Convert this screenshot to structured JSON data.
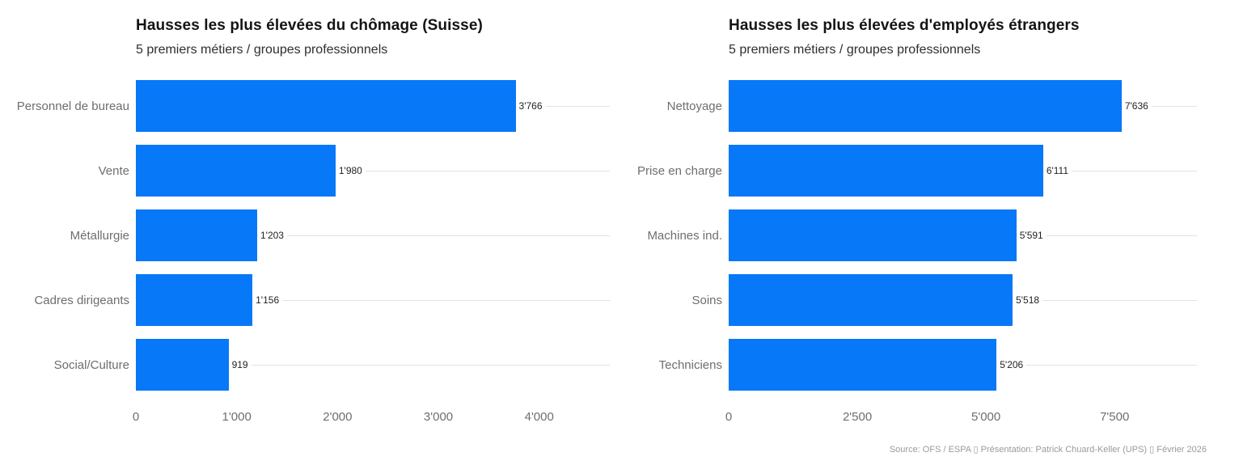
{
  "colors": {
    "bar": "#0778f7",
    "gridline": "#e2e2e2",
    "title": "#141414",
    "subtitle": "#2e2e2e",
    "category_label": "#6e6e6e",
    "tick_label": "#6e6e6e",
    "value_label": "#1f1f1f",
    "footer": "#9a9a9a"
  },
  "footer": {
    "text": "Source: OFS / ESPA ▯ Présentation: Patrick Chuard-Keller (UPS) ▯ Février 2026"
  },
  "chart_data": [
    {
      "type": "bar",
      "orientation": "horizontal",
      "title": "Hausses les plus élevées du chômage (Suisse)",
      "subtitle": "5 premiers métiers / groupes professionnels",
      "categories": [
        "Personnel de bureau",
        "Vente",
        "Métallurgie",
        "Cadres dirigeants",
        "Social/Culture"
      ],
      "values": [
        3766,
        1980,
        1203,
        1156,
        919
      ],
      "value_labels": [
        "3'766",
        "1'980",
        "1'203",
        "1'156",
        "919"
      ],
      "xticks": [
        0,
        1000,
        2000,
        3000,
        4000
      ],
      "xtick_labels": [
        "0",
        "1'000",
        "2'000",
        "3'000",
        "4'000"
      ],
      "xlim": [
        0,
        4700
      ],
      "grid": "horizontal-row-lines",
      "legend": "none"
    },
    {
      "type": "bar",
      "orientation": "horizontal",
      "title": "Hausses les plus élevées d'employés étrangers",
      "subtitle": "5 premiers métiers / groupes professionnels",
      "categories": [
        "Nettoyage",
        "Prise en charge",
        "Machines ind.",
        "Soins",
        "Techniciens"
      ],
      "values": [
        7636,
        6111,
        5591,
        5518,
        5206
      ],
      "value_labels": [
        "7'636",
        "6'111",
        "5'591",
        "5'518",
        "5'206"
      ],
      "xticks": [
        0,
        2500,
        5000,
        7500
      ],
      "xtick_labels": [
        "0",
        "2'500",
        "5'000",
        "7'500"
      ],
      "xlim": [
        0,
        9100
      ],
      "grid": "horizontal-row-lines",
      "legend": "none"
    }
  ]
}
